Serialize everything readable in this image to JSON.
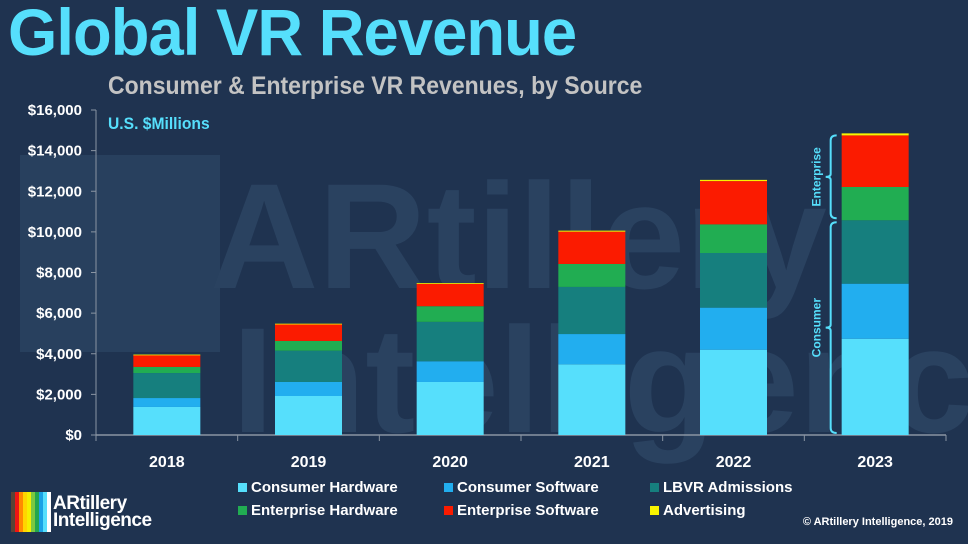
{
  "header": {
    "title": "Global VR Revenue",
    "subtitle": "Consumer & Enterprise VR Revenues, by Source",
    "units": "U.S. $Millions"
  },
  "watermark": {
    "line1": "ARtillery",
    "line2": "Intelligence"
  },
  "brackets": {
    "enterprise": "Enterprise",
    "consumer": "Consumer"
  },
  "logo": {
    "line1": "ARtillery",
    "line2": "Intelligence",
    "stripe_colors": [
      "#5b4336",
      "#f01414",
      "#ff8a00",
      "#ffd500",
      "#f4f000",
      "#7cc840",
      "#22a64e",
      "#1aa2e6",
      "#56dffc",
      "#ffffff"
    ]
  },
  "copyright": "© ARtillery Intelligence, 2019",
  "chart_data": {
    "type": "bar",
    "stacked": true,
    "title": "Global VR Revenue",
    "subtitle": "Consumer & Enterprise VR Revenues, by Source",
    "ylabel": "U.S. $Millions",
    "xlabel": "",
    "ylim": [
      0,
      16000
    ],
    "yticks": [
      0,
      2000,
      4000,
      6000,
      8000,
      10000,
      12000,
      14000,
      16000
    ],
    "ytick_labels": [
      "$0",
      "$2,000",
      "$4,000",
      "$6,000",
      "$8,000",
      "$10,000",
      "$12,000",
      "$14,000",
      "$16,000"
    ],
    "categories": [
      "2018",
      "2019",
      "2020",
      "2021",
      "2022",
      "2023"
    ],
    "grid": false,
    "legend_position": "bottom",
    "series": [
      {
        "name": "Consumer Hardware",
        "color": "#56dffc",
        "values": [
          1380,
          1920,
          2610,
          3480,
          4200,
          4740
        ]
      },
      {
        "name": "Consumer Software",
        "color": "#22aeef",
        "values": [
          440,
          690,
          1020,
          1490,
          2070,
          2710
        ]
      },
      {
        "name": "LBVR Admissions",
        "color": "#167f7e",
        "values": [
          1230,
          1540,
          1940,
          2320,
          2690,
          3120
        ]
      },
      {
        "name": "Enterprise Hardware",
        "color": "#21ad52",
        "values": [
          300,
          480,
          770,
          1130,
          1410,
          1640
        ]
      },
      {
        "name": "Enterprise Software",
        "color": "#fb1b00",
        "values": [
          590,
          820,
          1100,
          1590,
          2130,
          2540
        ]
      },
      {
        "name": "Advertising",
        "color": "#f8f400",
        "values": [
          20,
          30,
          40,
          50,
          60,
          100
        ]
      }
    ],
    "annotations": [
      {
        "text": "Enterprise",
        "category": "2023",
        "spans_series": [
          "Enterprise Hardware",
          "Enterprise Software",
          "Advertising"
        ]
      },
      {
        "text": "Consumer",
        "category": "2023",
        "spans_series": [
          "Consumer Hardware",
          "Consumer Software",
          "LBVR Admissions"
        ]
      }
    ]
  }
}
